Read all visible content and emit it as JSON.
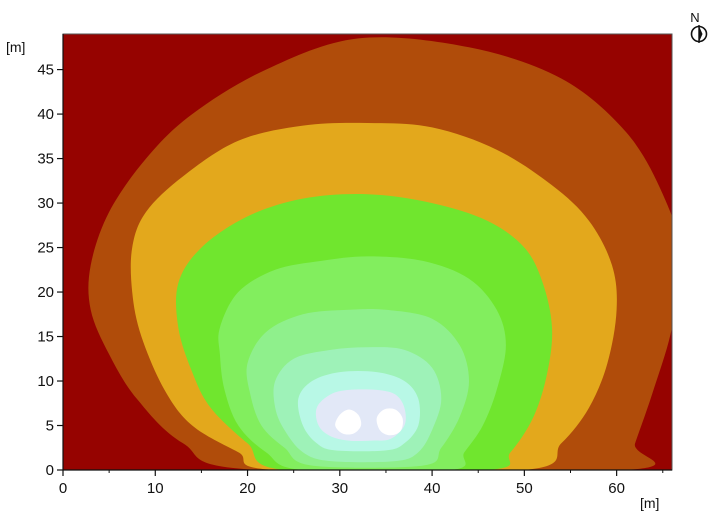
{
  "chart_data": {
    "type": "heatmap",
    "title": "",
    "xlabel": "[m]",
    "ylabel": "[m]",
    "xlim": [
      0,
      66
    ],
    "ylim": [
      0,
      49
    ],
    "x_ticks": [
      0,
      10,
      20,
      30,
      40,
      50,
      60
    ],
    "y_ticks": [
      0,
      5,
      10,
      15,
      20,
      25,
      30,
      35,
      40,
      45
    ],
    "grid": false,
    "legend": "none",
    "background_color": "#960300",
    "north_indicator": "N",
    "compass_icon": "north-arrow-icon",
    "contour_levels": [
      {
        "color": "#B04C0A",
        "boundary": [
          [
            3,
            23
          ],
          [
            5,
            29
          ],
          [
            9,
            35
          ],
          [
            14,
            40
          ],
          [
            22,
            45
          ],
          [
            32,
            48.5
          ],
          [
            44,
            47.5
          ],
          [
            54,
            44
          ],
          [
            61,
            38
          ],
          [
            65,
            31
          ],
          [
            67,
            24
          ],
          [
            66,
            16
          ],
          [
            64,
            9
          ],
          [
            62,
            3
          ],
          [
            61,
            0
          ],
          [
            21,
            0
          ],
          [
            13,
            3
          ],
          [
            8,
            8
          ],
          [
            5,
            13
          ],
          [
            3,
            18
          ]
        ]
      },
      {
        "color": "#E3A81C",
        "boundary": [
          [
            7.5,
            25
          ],
          [
            9,
            29
          ],
          [
            13,
            33
          ],
          [
            19,
            37
          ],
          [
            26,
            38.7
          ],
          [
            33,
            39
          ],
          [
            40,
            38.5
          ],
          [
            47,
            36
          ],
          [
            53,
            32
          ],
          [
            57,
            28
          ],
          [
            59.5,
            23
          ],
          [
            60,
            18
          ],
          [
            59,
            12
          ],
          [
            57,
            7
          ],
          [
            54,
            3
          ],
          [
            50,
            0
          ],
          [
            23,
            0
          ],
          [
            19,
            2
          ],
          [
            14,
            5
          ],
          [
            11,
            9
          ],
          [
            8.5,
            15
          ],
          [
            7.5,
            20
          ]
        ]
      },
      {
        "color": "#70E62E",
        "boundary": [
          [
            12.5,
            21
          ],
          [
            15,
            25
          ],
          [
            20,
            28.5
          ],
          [
            26,
            30.5
          ],
          [
            33,
            31
          ],
          [
            40,
            30
          ],
          [
            46,
            28
          ],
          [
            50,
            25
          ],
          [
            52,
            21
          ],
          [
            53,
            16
          ],
          [
            52.5,
            11
          ],
          [
            51,
            6
          ],
          [
            48.5,
            2
          ],
          [
            46,
            0
          ],
          [
            24,
            0
          ],
          [
            20,
            3
          ],
          [
            16,
            7
          ],
          [
            14,
            11
          ],
          [
            12.5,
            16
          ]
        ]
      },
      {
        "color": "#82EE5E",
        "boundary": [
          [
            17,
            16
          ],
          [
            19,
            20
          ],
          [
            23,
            22.5
          ],
          [
            28,
            23.5
          ],
          [
            33,
            24
          ],
          [
            39,
            23.5
          ],
          [
            44,
            21.5
          ],
          [
            47,
            18
          ],
          [
            48,
            14
          ],
          [
            47,
            9
          ],
          [
            45.5,
            5
          ],
          [
            43.5,
            2
          ],
          [
            42,
            0
          ],
          [
            26,
            0
          ],
          [
            22,
            2
          ],
          [
            19,
            5
          ],
          [
            17.5,
            9
          ],
          [
            17,
            13
          ]
        ]
      },
      {
        "color": "#8FF08C",
        "boundary": [
          [
            20,
            12
          ],
          [
            22,
            15.5
          ],
          [
            26,
            17.5
          ],
          [
            31,
            18
          ],
          [
            35,
            18
          ],
          [
            40,
            17
          ],
          [
            43,
            14
          ],
          [
            44,
            10
          ],
          [
            43,
            6
          ],
          [
            41,
            2.5
          ],
          [
            39,
            0.5
          ],
          [
            27,
            0.5
          ],
          [
            24,
            2.5
          ],
          [
            21.5,
            5
          ],
          [
            20.3,
            8.5
          ]
        ]
      },
      {
        "color": "#9EF2B8",
        "boundary": [
          [
            23,
            10
          ],
          [
            25,
            12.5
          ],
          [
            29,
            13.5
          ],
          [
            33,
            13.8
          ],
          [
            37,
            13.5
          ],
          [
            40,
            11.5
          ],
          [
            41,
            8
          ],
          [
            40,
            4.5
          ],
          [
            38.5,
            2
          ],
          [
            36,
            1
          ],
          [
            29,
            1
          ],
          [
            26,
            2
          ],
          [
            24,
            4.5
          ],
          [
            23,
            7
          ]
        ]
      },
      {
        "color": "#B8F8E6",
        "boundary": [
          [
            25.5,
            8
          ],
          [
            27,
            10
          ],
          [
            30,
            11
          ],
          [
            34,
            11
          ],
          [
            37,
            10
          ],
          [
            38.5,
            8
          ],
          [
            38.5,
            5
          ],
          [
            37,
            3
          ],
          [
            35,
            2.2
          ],
          [
            29.5,
            2.2
          ],
          [
            27.5,
            3
          ],
          [
            26,
            5
          ]
        ]
      },
      {
        "color": "#E2E8F7",
        "boundary": [
          [
            27.5,
            7
          ],
          [
            29,
            8.5
          ],
          [
            31,
            9
          ],
          [
            34,
            9
          ],
          [
            36,
            8.5
          ],
          [
            37,
            7
          ],
          [
            37,
            5
          ],
          [
            35.5,
            3.5
          ],
          [
            33.5,
            3.3
          ],
          [
            31,
            3.3
          ],
          [
            29,
            3.8
          ],
          [
            27.7,
            5
          ]
        ]
      },
      {
        "color": "#FFFFFF",
        "boundary": [
          [
            29.5,
            5
          ],
          [
            30,
            6.2
          ],
          [
            31,
            6.8
          ],
          [
            32,
            6.2
          ],
          [
            32.3,
            5
          ],
          [
            31.5,
            4.1
          ],
          [
            30.3,
            4.1
          ]
        ]
      },
      {
        "color": "#FFFFFF",
        "boundary": [
          [
            34,
            5.8
          ],
          [
            34.8,
            6.8
          ],
          [
            36,
            6.8
          ],
          [
            36.8,
            5.8
          ],
          [
            36.6,
            4.4
          ],
          [
            35.5,
            3.9
          ],
          [
            34.4,
            4.4
          ]
        ]
      }
    ]
  }
}
